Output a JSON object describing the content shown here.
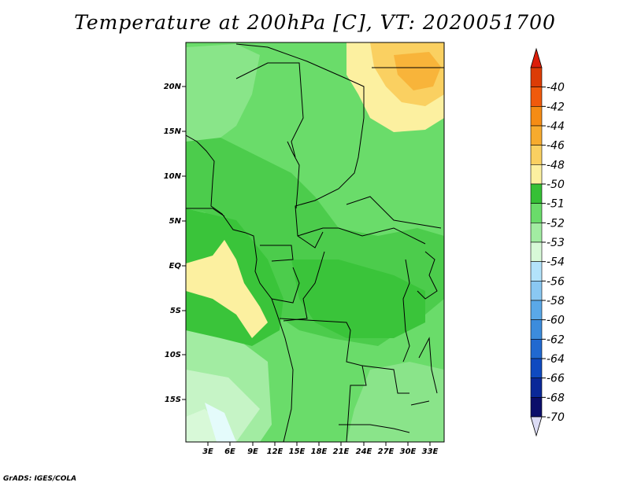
{
  "title": "Temperature at 200hPa [C], VT: 2020051700",
  "credit": "GrADS: IGES/COLA",
  "map": {
    "lon_labels": [
      "3E",
      "6E",
      "9E",
      "12E",
      "15E",
      "18E",
      "21E",
      "24E",
      "27E",
      "30E",
      "33E"
    ],
    "lat_labels": [
      "20N",
      "15N",
      "10N",
      "5N",
      "EQ",
      "5S",
      "10S",
      "15S"
    ]
  },
  "legend": {
    "colors": [
      "#dc3c06",
      "#f05a0c",
      "#f58c14",
      "#f7ab2e",
      "#fad061",
      "#fcf0a0",
      "#36c036",
      "#6adc6a",
      "#a2eca2",
      "#d8f9d8",
      "#b3e3fb",
      "#8ac8f2",
      "#5aa8e8",
      "#3c8cdc",
      "#2169d0",
      "#0f4ac0",
      "#0a2898",
      "#0b0e6a"
    ],
    "labels": [
      "-40",
      "-42",
      "-44",
      "-46",
      "-48",
      "-50",
      "-51",
      "-52",
      "-53",
      "-54",
      "-56",
      "-58",
      "-60",
      "-62",
      "-64",
      "-66",
      "-68",
      "-70"
    ],
    "top_color": "#dc1e0a",
    "bottom_color": "#dcdcf5"
  }
}
